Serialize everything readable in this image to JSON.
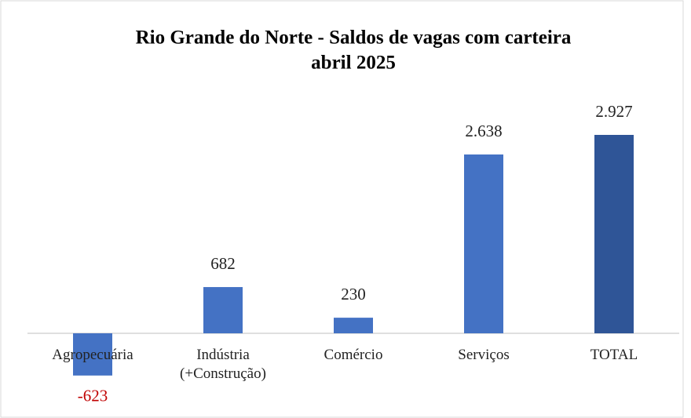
{
  "chart_data": {
    "type": "bar",
    "title": "Rio Grande do Norte - Saldos de vagas com carteira",
    "subtitle": "abril 2025",
    "categories": [
      "Agropecuária",
      "Indústria (+Construção)",
      "Comércio",
      "Serviços",
      "TOTAL"
    ],
    "values": [
      -623,
      682,
      230,
      2638,
      2927
    ],
    "value_labels": [
      "-623",
      "682",
      "230",
      "2.638",
      "2.927"
    ],
    "colors": [
      "#4472c4",
      "#4472c4",
      "#4472c4",
      "#4472c4",
      "#2f5597"
    ],
    "negative_label_color": "#c00000"
  }
}
